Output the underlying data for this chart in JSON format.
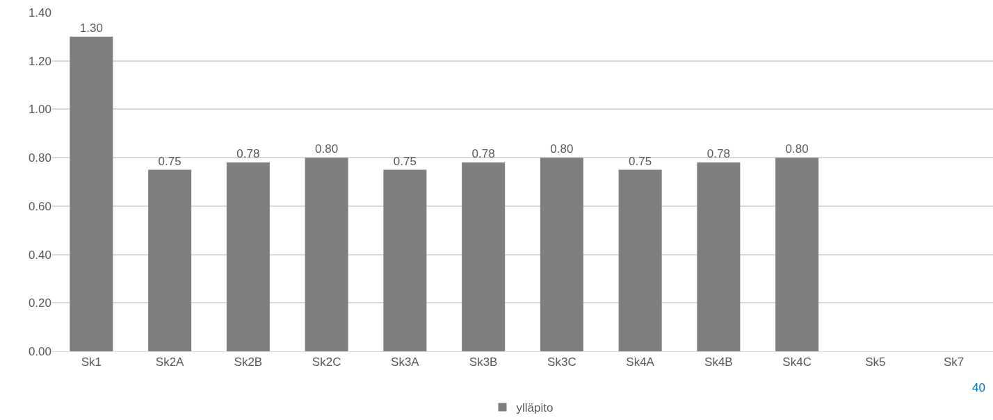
{
  "chart_data": {
    "type": "bar",
    "categories": [
      "Sk1",
      "Sk2A",
      "Sk2B",
      "Sk2C",
      "Sk3A",
      "Sk3B",
      "Sk3C",
      "Sk4A",
      "Sk4B",
      "Sk4C",
      "Sk5",
      "Sk7"
    ],
    "series": [
      {
        "name": "ylläpito",
        "color": "#7f7f7f",
        "values": [
          1.3,
          0.75,
          0.78,
          0.8,
          0.75,
          0.78,
          0.8,
          0.75,
          0.78,
          0.8,
          null,
          null
        ],
        "value_labels": [
          "1.30",
          "0.75",
          "0.78",
          "0.80",
          "0.75",
          "0.78",
          "0.80",
          "0.75",
          "0.78",
          "0.80",
          null,
          null
        ]
      }
    ],
    "ylim": [
      0,
      1.4
    ],
    "yticks": [
      {
        "value": 0,
        "label": "0.00"
      },
      {
        "value": 0.2,
        "label": "0.20"
      },
      {
        "value": 0.4,
        "label": "0.40"
      },
      {
        "value": 0.6,
        "label": "0.60"
      },
      {
        "value": 0.8,
        "label": "0.80"
      },
      {
        "value": 1,
        "label": "1.00"
      },
      {
        "value": 1.2,
        "label": "1.20"
      },
      {
        "value": 1.4,
        "label": "1.40"
      }
    ],
    "grid": "y",
    "legend": "bottom",
    "annotations": [
      "40"
    ]
  }
}
